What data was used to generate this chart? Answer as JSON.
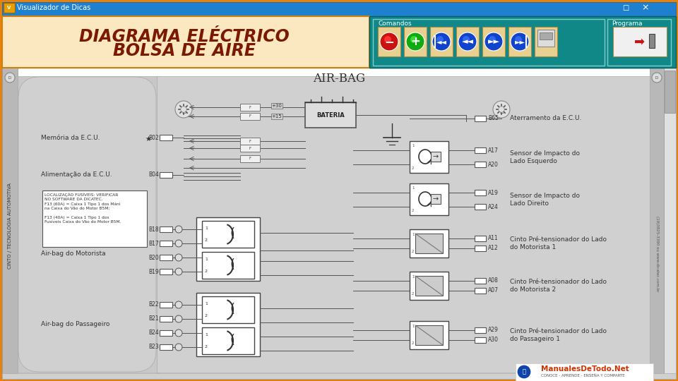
{
  "title": "Visualizador de Dicas",
  "main_title_line1": "DIAGRAMA ELÉCTRICO",
  "main_title_line2": "BOLSA DE AIRE",
  "airbag_title": "AIR-BAG",
  "window_bg": "#e8820a",
  "titlebar_bg": "#2080d0",
  "toolbar_bg": "#108888",
  "header_bg": "#fce8c0",
  "diagram_outer_bg": "#ffffff",
  "diagram_paper_bg": "#d4d4d4",
  "left_col_bg": "#c0c0c0",
  "comandos_label": "Comandos",
  "programa_label": "Programa",
  "left_labels": [
    [
      "Memória da E.C.U.",
      195
    ],
    [
      "Alimentação da E.C.U.",
      248
    ],
    [
      "Air-bag do Motorista",
      360
    ],
    [
      "Air-bag do Passageiro",
      460
    ]
  ],
  "right_labels": [
    [
      "Aterramento da E.C.U.",
      168,
      "B65"
    ],
    [
      "Sensor de Impacto do\nLado Esquerdo",
      220,
      ""
    ],
    [
      "Sensor de Impacto do\nLado Direito",
      280,
      ""
    ],
    [
      "Cinto Pré-tensionador do Lado\ndo Motorista 1",
      345,
      ""
    ],
    [
      "Cinto Pré-tensionador do Lado\ndo Motorista 2",
      405,
      ""
    ],
    [
      "Cinto Pré-tensionador do Lado\ndo Passageiro 1",
      470,
      ""
    ]
  ],
  "note_text": "LOCALIZAÇÃO FUSÍVEIS: VERIFICAR\nNO SOFTWARE DA DICATEC.\nF13 (60A) = Caixa 1 Tipo 1 dos Máni\nna Caixa do Vão do Motor B5M;\n\nF13 (40A) = Caixa 1 Tipo 1 dos\nFusíveis Caixa do Vão do Motor B5M.",
  "vertical_text": "CINTO / TECNOLOGIA AUTOMOTIVA",
  "watermark_text": "(19)3825-3390 ou www.dicatec.com.br",
  "logo_text": "ManualesDeTodo.Net",
  "logo_sub": "CONOCE - APRENDE - ENSEÑA Y COMPARTE"
}
